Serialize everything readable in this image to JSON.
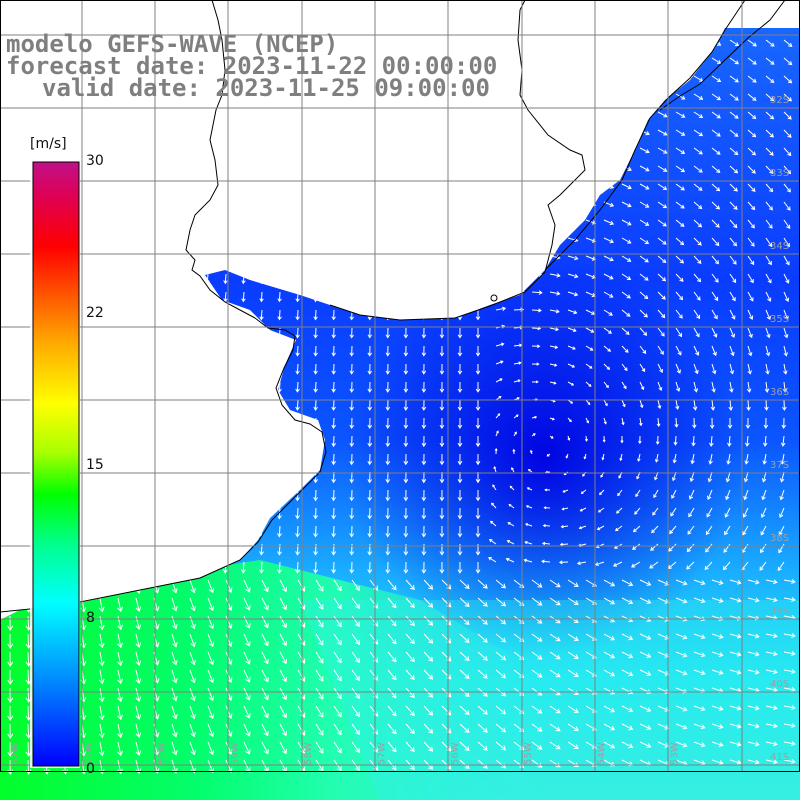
{
  "title": {
    "line1": "modelo GEFS-WAVE (NCEP)",
    "line2": "forecast date: 2023-11-22 00:00:00",
    "line3": "valid date: 2023-11-25 09:00:00"
  },
  "colorbar": {
    "unit": "[m/s]",
    "ticks": [
      "30",
      "22",
      "15",
      "8",
      "0"
    ],
    "tick_values": [
      30,
      22,
      15,
      8,
      0
    ],
    "min": 0,
    "max": 30,
    "colors": [
      "#0000ff",
      "#00aaff",
      "#00ffff",
      "#00ff66",
      "#00ff00",
      "#aaff00",
      "#ffff00",
      "#ffaa00",
      "#ff5500",
      "#ff0000",
      "#e0006a",
      "#c0008a"
    ]
  },
  "map": {
    "variable": "wind speed and direction",
    "land_color": "#ffffff",
    "coast_color": "#000000",
    "grid_color": "#808080",
    "lat_labels": [
      "32S",
      "33S",
      "34S",
      "35S",
      "36S",
      "37S",
      "38S",
      "39S",
      "40S",
      "41S"
    ],
    "lon_labels": [
      "62W",
      "61W",
      "60W",
      "59W",
      "58W",
      "57W",
      "56W",
      "55W",
      "54W",
      "53W"
    ]
  }
}
